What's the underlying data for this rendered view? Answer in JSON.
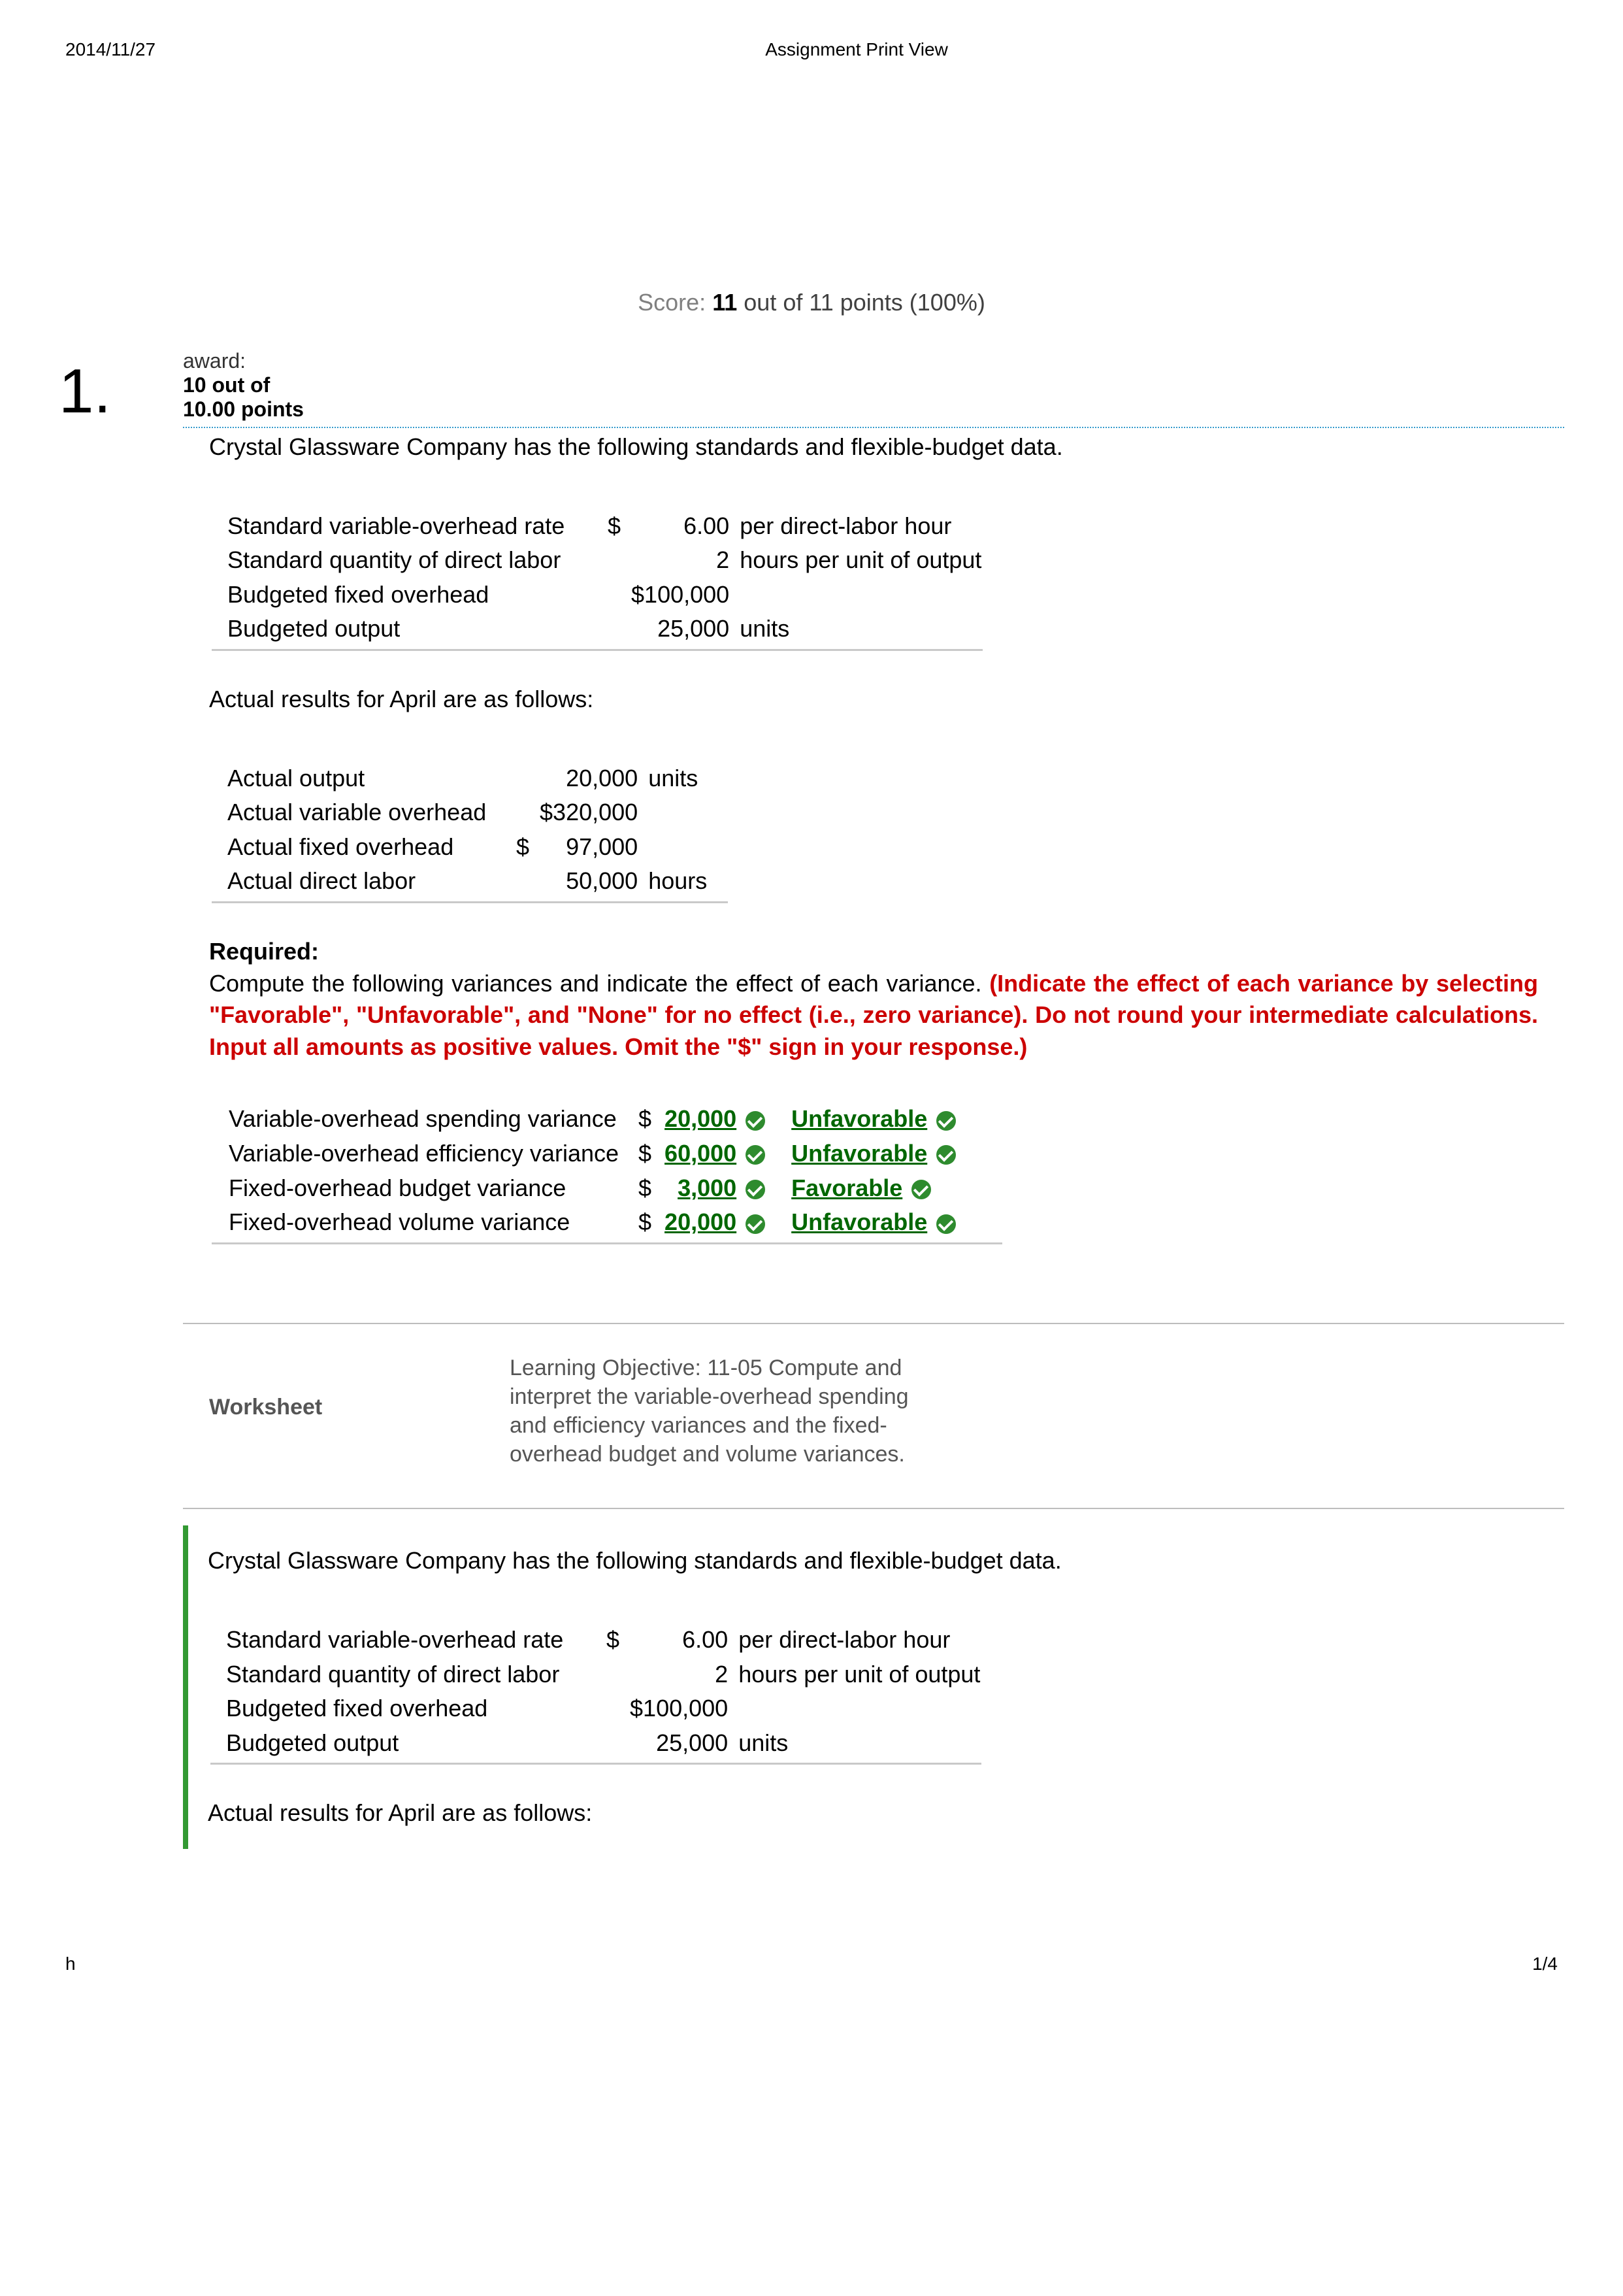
{
  "header": {
    "date": "2014/11/27",
    "title": "Assignment Print View"
  },
  "score": {
    "label": "Score:",
    "points": "11",
    "rest": "out of 11 points (100%)"
  },
  "question": {
    "number": "1.",
    "award_label": "award:",
    "award_points_top": "10 out of",
    "award_points_bottom": "10.00 points",
    "intro": "Crystal Glassware Company has the following standards and flexible-budget data.",
    "standards": [
      {
        "label": "Standard variable-overhead rate",
        "dollar": "$",
        "amt": "6.00",
        "unit": "per direct-labor hour"
      },
      {
        "label": "Standard quantity of direct labor",
        "dollar": "",
        "amt": "2",
        "unit": "hours per unit of output"
      },
      {
        "label": "Budgeted fixed overhead",
        "dollar": "",
        "amt": "$100,000",
        "unit": ""
      },
      {
        "label": "Budgeted output",
        "dollar": "",
        "amt": "25,000",
        "unit": "units"
      }
    ],
    "actual_intro": "Actual results for April are as follows:",
    "actuals": [
      {
        "label": "Actual output",
        "dollar": "",
        "amt": "20,000",
        "unit": "units"
      },
      {
        "label": "Actual variable overhead",
        "dollar": "",
        "amt": "$320,000",
        "unit": ""
      },
      {
        "label": "Actual fixed overhead",
        "dollar": "$",
        "amt": "97,000",
        "unit": ""
      },
      {
        "label": "Actual direct labor",
        "dollar": "",
        "amt": "50,000",
        "unit": "hours"
      }
    ],
    "required_label": "Required:",
    "required_text_plain": "Compute the following variances and indicate the effect of each variance. ",
    "required_text_red": "(Indicate the effect of each variance by selecting \"Favorable\", \"Unfavorable\", and \"None\" for no effect (i.e., zero variance). Do not round your intermediate calculations. Input all amounts as positive values. Omit the \"$\" sign in your response.)",
    "variances": [
      {
        "label": "Variable-overhead spending variance",
        "amt": "20,000",
        "effect": "Unfavorable"
      },
      {
        "label": "Variable-overhead efficiency variance",
        "amt": "60,000",
        "effect": "Unfavorable"
      },
      {
        "label": "Fixed-overhead budget variance",
        "amt": "3,000",
        "effect": "Favorable"
      },
      {
        "label": "Fixed-overhead volume variance",
        "amt": "20,000",
        "effect": "Unfavorable"
      }
    ]
  },
  "references": {
    "left": "Worksheet",
    "right": "Learning Objective: 11-05 Compute and interpret the variable-overhead spending and efficiency variances and the fixed-overhead budget and volume variances."
  },
  "explanation": {
    "intro": "Crystal Glassware Company has the following standards and flexible-budget data.",
    "standards": [
      {
        "label": "Standard variable-overhead rate",
        "dollar": "$",
        "amt": "6.00",
        "unit": "per direct-labor hour"
      },
      {
        "label": "Standard quantity of direct labor",
        "dollar": "",
        "amt": "2",
        "unit": "hours per unit of output"
      },
      {
        "label": "Budgeted fixed overhead",
        "dollar": "",
        "amt": "$100,000",
        "unit": ""
      },
      {
        "label": "Budgeted output",
        "dollar": "",
        "amt": "25,000",
        "unit": "units"
      }
    ],
    "actual_intro": "Actual results for April are as follows:"
  },
  "footer": {
    "left": "h",
    "right": "1/4"
  }
}
